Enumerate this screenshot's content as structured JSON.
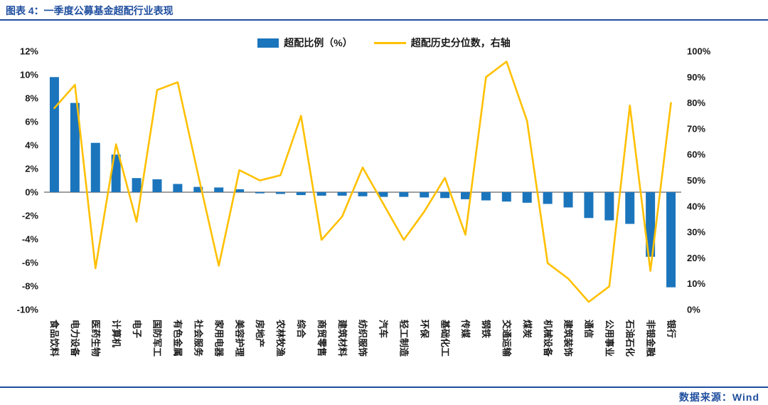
{
  "header": {
    "title": "图表 4：一季度公募基金超配行业表现"
  },
  "footer": {
    "source": "数据来源：Wind"
  },
  "legend": {
    "bar": "超配比例（%）",
    "line": "超配历史分位数，右轴"
  },
  "colors": {
    "accent": "#1F4E9F",
    "bar": "#1B75BC",
    "line": "#FFC000"
  },
  "chart_data": {
    "type": "bar",
    "subtype": "bar+line-dual-axis",
    "title": "一季度公募基金超配行业表现",
    "categories": [
      "食品饮料",
      "电力设备",
      "医药生物",
      "计算机",
      "电子",
      "国防军工",
      "有色金属",
      "社会服务",
      "家用电器",
      "美容护理",
      "房地产",
      "农林牧渔",
      "综合",
      "商贸零售",
      "建筑材料",
      "纺织服饰",
      "汽车",
      "轻工制造",
      "环保",
      "基础化工",
      "传媒",
      "钢铁",
      "交通运输",
      "煤炭",
      "机械设备",
      "建筑装饰",
      "通信",
      "公用事业",
      "石油石化",
      "非银金融",
      "银行"
    ],
    "series": [
      {
        "name": "超配比例（%）",
        "type": "bar",
        "axis": "left",
        "color": "#1B75BC",
        "values": [
          9.8,
          7.6,
          4.2,
          3.2,
          1.2,
          1.1,
          0.7,
          0.45,
          0.4,
          0.25,
          -0.1,
          -0.15,
          -0.25,
          -0.3,
          -0.3,
          -0.35,
          -0.4,
          -0.4,
          -0.45,
          -0.5,
          -0.6,
          -0.7,
          -0.8,
          -0.9,
          -1.0,
          -1.3,
          -2.2,
          -2.4,
          -2.7,
          -5.5,
          -8.1
        ]
      },
      {
        "name": "超配历史分位数，右轴",
        "type": "line",
        "axis": "right",
        "color": "#FFC000",
        "values": [
          78,
          87,
          16,
          64,
          34,
          85,
          88,
          52,
          17,
          54,
          50,
          52,
          75,
          27,
          36,
          55,
          41,
          27,
          38,
          51,
          29,
          90,
          96,
          73,
          18,
          12,
          3,
          9,
          79,
          15,
          80
        ]
      }
    ],
    "left_axis": {
      "min": -10,
      "max": 12,
      "step": 2,
      "suffix": "%"
    },
    "right_axis": {
      "min": 0,
      "max": 100,
      "step": 10,
      "suffix": "%"
    },
    "grid": false,
    "legend_position": "top"
  }
}
